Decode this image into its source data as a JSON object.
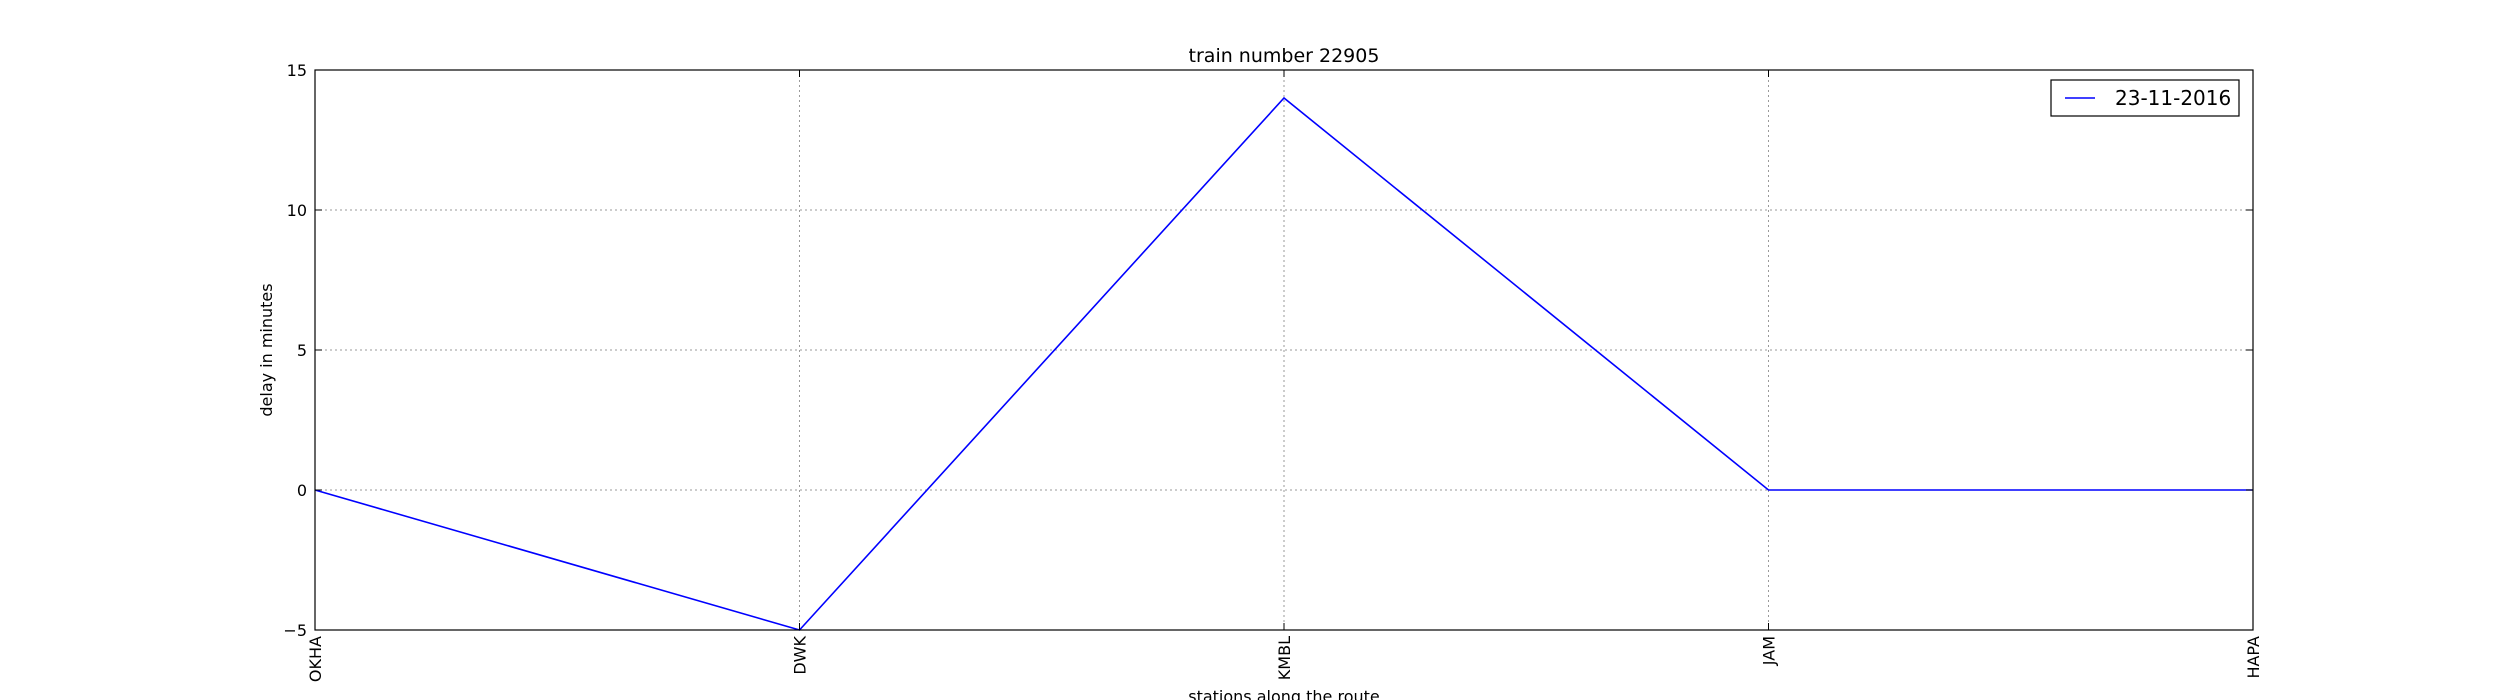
{
  "chart_data": {
    "type": "line",
    "title": "train number 22905",
    "xlabel": "stations along the route",
    "ylabel": "delay in minutes",
    "categories": [
      "OKHA",
      "DWK",
      "KMBL",
      "JAM",
      "HAPA"
    ],
    "series": [
      {
        "name": "23-11-2016",
        "values": [
          0,
          -5,
          14,
          0,
          0
        ],
        "color": "#0000ff"
      }
    ],
    "ylim": [
      -5,
      15
    ],
    "yticks": [
      -5,
      0,
      5,
      10,
      15
    ],
    "grid": true,
    "legend_position": "top-right"
  }
}
